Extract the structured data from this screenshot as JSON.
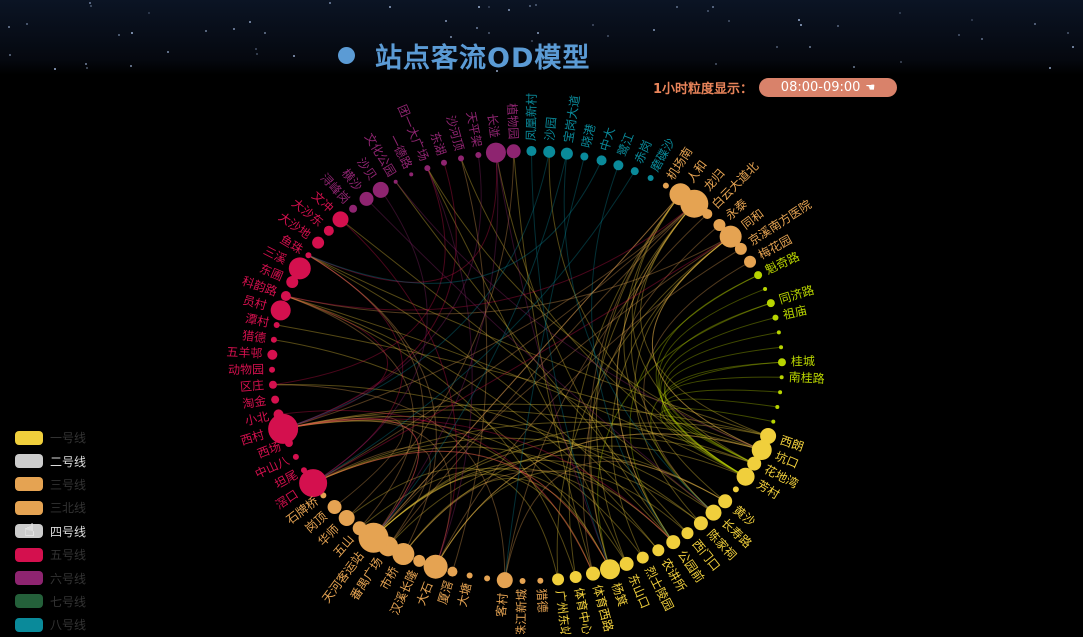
{
  "title": "站点客流OD模型",
  "granularity": {
    "label": "1小时粒度显示：",
    "value": "08:00-09:00",
    "icon": "cursor-hand-icon"
  },
  "legend": [
    {
      "label": "一号线",
      "color": "#f0cf3c",
      "active": false
    },
    {
      "label": "二号线",
      "color": "#cccccc",
      "active": true
    },
    {
      "label": "三号线",
      "color": "#e5a352",
      "active": false
    },
    {
      "label": "三北线",
      "color": "#e5a352",
      "active": false
    },
    {
      "label": "四号线",
      "color": "#cccccc",
      "active": true
    },
    {
      "label": "五号线",
      "color": "#d4104e",
      "active": false
    },
    {
      "label": "六号线",
      "color": "#8e2470",
      "active": false
    },
    {
      "label": "七号线",
      "color": "#24603a",
      "active": false
    },
    {
      "label": "八号线",
      "color": "#0a8a9a",
      "active": false
    }
  ],
  "chart_data": {
    "type": "graph-circular",
    "line_colors": {
      "L1": "#f0cf3c",
      "L3": "#e5a352",
      "L5": "#d4104e",
      "L6": "#8e2470",
      "L8": "#0a8a9a",
      "GF": "#b8d400"
    },
    "nodes": [
      [
        "凤凰新村",
        "L8",
        5
      ],
      [
        "沙园",
        "L8",
        6
      ],
      [
        "宝岗大道",
        "L8",
        6
      ],
      [
        "晓港",
        "L8",
        4
      ],
      [
        "中大",
        "L8",
        5
      ],
      [
        "鹭江",
        "L8",
        5
      ],
      [
        "赤岗",
        "L8",
        4
      ],
      [
        "磨碟沙",
        "L8",
        3
      ],
      [
        "机场南",
        "L3",
        3
      ],
      [
        "人和",
        "L3",
        11
      ],
      [
        "龙归",
        "L3",
        14
      ],
      [
        "白云大道北",
        "L3",
        5
      ],
      [
        "永泰",
        "L3",
        6
      ],
      [
        "同和",
        "L3",
        11
      ],
      [
        "京溪南方医院",
        "L3",
        6
      ],
      [
        "梅花园",
        "L3",
        6
      ],
      [
        "魁奇路",
        "GF",
        4
      ],
      [
        "",
        "GF",
        2
      ],
      [
        "同济路",
        "GF",
        4
      ],
      [
        "祖庙",
        "GF",
        3
      ],
      [
        "",
        "GF",
        2
      ],
      [
        "",
        "GF",
        2
      ],
      [
        "桂城",
        "GF",
        4
      ],
      [
        "南桂路",
        "GF",
        2
      ],
      [
        "",
        "GF",
        2
      ],
      [
        "",
        "GF",
        2
      ],
      [
        "",
        "GF",
        2
      ],
      [
        "西朗",
        "L1",
        8
      ],
      [
        "坑口",
        "L1",
        10
      ],
      [
        "花地湾",
        "L1",
        7
      ],
      [
        "芳村",
        "L1",
        9
      ],
      [
        "",
        "L1",
        3
      ],
      [
        "黄沙",
        "L1",
        7
      ],
      [
        "长寿路",
        "L1",
        8
      ],
      [
        "陈家祠",
        "L1",
        7
      ],
      [
        "西门口",
        "L1",
        6
      ],
      [
        "公园前",
        "L1",
        7
      ],
      [
        "农讲所",
        "L1",
        6
      ],
      [
        "烈士陵园",
        "L1",
        6
      ],
      [
        "东山口",
        "L1",
        7
      ],
      [
        "杨箕",
        "L1",
        10
      ],
      [
        "体育西路",
        "L1",
        7
      ],
      [
        "体育中心",
        "L1",
        6
      ],
      [
        "广州东站",
        "L1",
        6
      ],
      [
        "猎德",
        "L3",
        3
      ],
      [
        "珠江新城",
        "L3",
        3
      ],
      [
        "客村",
        "L3",
        8
      ],
      [
        "",
        "L3",
        3
      ],
      [
        "大塘",
        "L3",
        3
      ],
      [
        "厦滘",
        "L3",
        5
      ],
      [
        "大石",
        "L3",
        12
      ],
      [
        "汉溪长隆",
        "L3",
        6
      ],
      [
        "市桥",
        "L3",
        11
      ],
      [
        "番禺广场",
        "L3",
        10
      ],
      [
        "天河客运站",
        "L3",
        15
      ],
      [
        "五山",
        "L3",
        7
      ],
      [
        "华师",
        "L3",
        8
      ],
      [
        "岗顶",
        "L3",
        7
      ],
      [
        "石牌桥",
        "L3",
        3
      ],
      [
        "滘口",
        "L5",
        14
      ],
      [
        "坦尾",
        "L5",
        3
      ],
      [
        "中山八",
        "L5",
        3
      ],
      [
        "西场",
        "L5",
        4
      ],
      [
        "西村",
        "L5",
        15
      ],
      [
        "小北",
        "L5",
        5
      ],
      [
        "淘金",
        "L5",
        4
      ],
      [
        "区庄",
        "L5",
        4
      ],
      [
        "动物园",
        "L5",
        3
      ],
      [
        "五羊邨",
        "L5",
        5
      ],
      [
        "猎德",
        "L5",
        3
      ],
      [
        "潭村",
        "L5",
        3
      ],
      [
        "员村",
        "L5",
        10
      ],
      [
        "科韵路",
        "L5",
        5
      ],
      [
        "东圃",
        "L5",
        6
      ],
      [
        "三溪",
        "L5",
        11
      ],
      [
        "鱼珠",
        "L5",
        3
      ],
      [
        "大沙地",
        "L5",
        6
      ],
      [
        "大沙东",
        "L5",
        5
      ],
      [
        "文冲",
        "L5",
        8
      ],
      [
        "浔峰岗",
        "L6",
        4
      ],
      [
        "横沙",
        "L6",
        7
      ],
      [
        "沙贝",
        "L6",
        8
      ],
      [
        "文化公园",
        "L6",
        2
      ],
      [
        "一德路",
        "L6",
        2
      ],
      [
        "团一大广场",
        "L6",
        3
      ],
      [
        "东湖",
        "L6",
        3
      ],
      [
        "沙河顶",
        "L6",
        3
      ],
      [
        "天平架",
        "L6",
        3
      ],
      [
        "长湴",
        "L6",
        10
      ],
      [
        "植物园",
        "L6",
        7
      ]
    ],
    "links": [
      [
        27,
        54
      ],
      [
        27,
        63
      ],
      [
        27,
        10
      ],
      [
        27,
        75
      ],
      [
        28,
        59
      ],
      [
        28,
        50
      ],
      [
        28,
        13
      ],
      [
        28,
        70
      ],
      [
        28,
        84
      ],
      [
        29,
        63
      ],
      [
        29,
        9
      ],
      [
        29,
        54
      ],
      [
        30,
        52
      ],
      [
        30,
        72
      ],
      [
        30,
        86
      ],
      [
        30,
        1
      ],
      [
        32,
        59
      ],
      [
        32,
        10
      ],
      [
        32,
        53
      ],
      [
        33,
        63
      ],
      [
        33,
        9
      ],
      [
        33,
        78
      ],
      [
        34,
        54
      ],
      [
        34,
        13
      ],
      [
        34,
        66
      ],
      [
        35,
        50
      ],
      [
        35,
        82
      ],
      [
        36,
        59
      ],
      [
        36,
        10
      ],
      [
        36,
        75
      ],
      [
        36,
        88
      ],
      [
        37,
        72
      ],
      [
        37,
        54
      ],
      [
        38,
        13
      ],
      [
        38,
        63
      ],
      [
        39,
        55
      ],
      [
        39,
        9
      ],
      [
        39,
        84
      ],
      [
        40,
        59
      ],
      [
        40,
        52
      ],
      [
        40,
        10
      ],
      [
        40,
        69
      ],
      [
        41,
        63
      ],
      [
        41,
        54
      ],
      [
        41,
        89
      ],
      [
        42,
        9
      ],
      [
        42,
        72
      ],
      [
        43,
        56
      ],
      [
        43,
        13
      ],
      [
        16,
        30
      ],
      [
        17,
        30
      ],
      [
        18,
        30
      ],
      [
        19,
        30
      ],
      [
        20,
        29
      ],
      [
        21,
        29
      ],
      [
        22,
        30
      ],
      [
        23,
        29
      ],
      [
        24,
        30
      ],
      [
        25,
        29
      ],
      [
        26,
        30
      ],
      [
        16,
        36
      ],
      [
        18,
        40
      ],
      [
        22,
        33
      ],
      [
        9,
        54
      ],
      [
        9,
        40
      ],
      [
        10,
        63
      ],
      [
        10,
        36
      ],
      [
        10,
        59
      ],
      [
        13,
        54
      ],
      [
        13,
        72
      ],
      [
        13,
        28
      ],
      [
        14,
        50
      ],
      [
        15,
        33
      ],
      [
        12,
        41
      ],
      [
        11,
        46
      ],
      [
        54,
        63
      ],
      [
        54,
        75
      ],
      [
        54,
        9
      ],
      [
        50,
        28
      ],
      [
        50,
        63
      ],
      [
        52,
        75
      ],
      [
        52,
        36
      ],
      [
        53,
        10
      ],
      [
        53,
        59
      ],
      [
        55,
        72
      ],
      [
        56,
        89
      ],
      [
        57,
        63
      ],
      [
        46,
        32
      ],
      [
        46,
        66
      ],
      [
        49,
        86
      ],
      [
        59,
        75
      ],
      [
        59,
        13
      ],
      [
        59,
        40
      ],
      [
        63,
        72
      ],
      [
        63,
        54
      ],
      [
        63,
        36
      ],
      [
        63,
        85
      ],
      [
        72,
        10
      ],
      [
        75,
        88
      ],
      [
        78,
        50
      ],
      [
        64,
        41
      ],
      [
        66,
        84
      ],
      [
        88,
        54
      ],
      [
        88,
        40
      ],
      [
        87,
        63
      ],
      [
        80,
        33
      ],
      [
        81,
        59
      ],
      [
        82,
        28
      ],
      [
        84,
        50
      ],
      [
        0,
        40
      ],
      [
        1,
        63
      ],
      [
        2,
        54
      ],
      [
        2,
        33
      ],
      [
        4,
        75
      ],
      [
        5,
        36
      ],
      [
        6,
        59
      ],
      [
        3,
        46
      ]
    ]
  }
}
